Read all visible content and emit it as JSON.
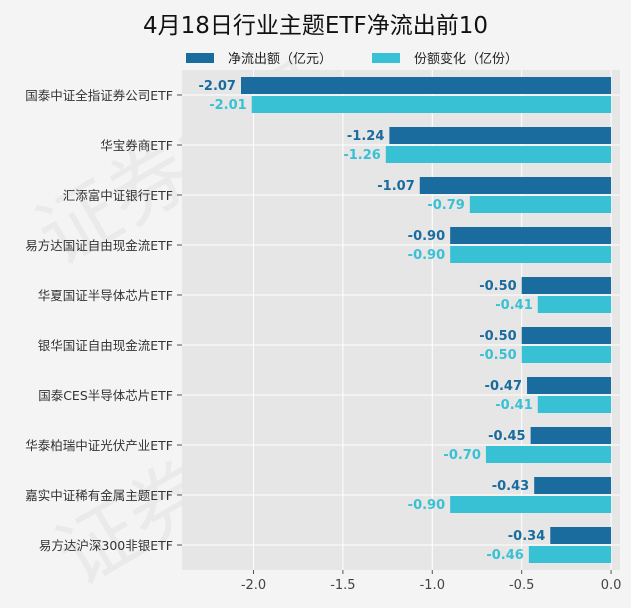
{
  "chart_data": {
    "type": "bar",
    "orientation": "horizontal",
    "title": "4月18日行业主题ETF净流出前10",
    "categories": [
      "国泰中证全指证券公司ETF",
      "华宝券商ETF",
      "汇添富中证银行ETF",
      "易方达国证自由现金流ETF",
      "华夏国证半导体芯片ETF",
      "银华国证自由现金流ETF",
      "国泰CES半导体芯片ETF",
      "华泰柏瑞中证光伏产业ETF",
      "嘉实中证稀有金属主题ETF",
      "易方达沪深300非银ETF"
    ],
    "series": [
      {
        "name": "净流出额（亿元）",
        "color": "#1a6b9e",
        "values": [
          -2.07,
          -1.24,
          -1.07,
          -0.9,
          -0.5,
          -0.5,
          -0.47,
          -0.45,
          -0.43,
          -0.34
        ]
      },
      {
        "name": "份额变化（亿份）",
        "color": "#38c1d4",
        "values": [
          -2.01,
          -1.26,
          -0.79,
          -0.9,
          -0.41,
          -0.5,
          -0.41,
          -0.7,
          -0.9,
          -0.46
        ]
      }
    ],
    "xlim": [
      -2.4,
      0.05
    ],
    "xticks": [
      "-2.0",
      "-1.5",
      "-1.0",
      "-0.5",
      "0.0"
    ],
    "xtick_values": [
      -2.0,
      -1.5,
      -1.0,
      -0.5,
      0.0
    ],
    "grid": true,
    "legend_position": "top"
  },
  "watermark": "证券之星"
}
